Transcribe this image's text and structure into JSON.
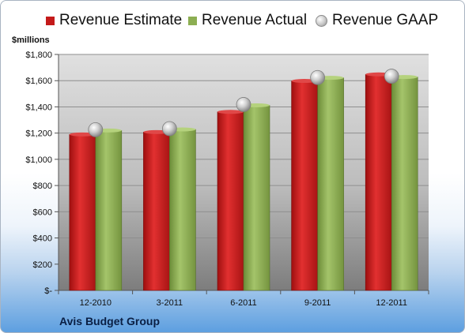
{
  "chart_data": {
    "type": "bar",
    "categories": [
      "12-2010",
      "3-2011",
      "6-2011",
      "9-2011",
      "12-2011"
    ],
    "series": [
      {
        "name": "Revenue Estimate",
        "values": [
          1190,
          1208,
          1362,
          1598,
          1648
        ],
        "color": "#c41a1a"
      },
      {
        "name": "Revenue Actual",
        "values": [
          1220,
          1228,
          1412,
          1622,
          1628
        ],
        "color": "#8cae52"
      },
      {
        "name": "Revenue GAAP",
        "values": [
          1226,
          1234,
          1418,
          1624,
          1634
        ],
        "marker": "circle"
      }
    ],
    "ylabel": "$millions",
    "ylim": [
      0,
      1800
    ],
    "yticks": [
      0,
      200,
      400,
      600,
      800,
      1000,
      1200,
      1400,
      1600,
      1800
    ],
    "ytick_labels": [
      "$-",
      "$200",
      "$400",
      "$600",
      "$800",
      "$1,000",
      "$1,200",
      "$1,400",
      "$1,600",
      "$1,800"
    ],
    "grid": true,
    "legend_position": "top"
  },
  "footer": {
    "company": "Avis Budget Group"
  }
}
